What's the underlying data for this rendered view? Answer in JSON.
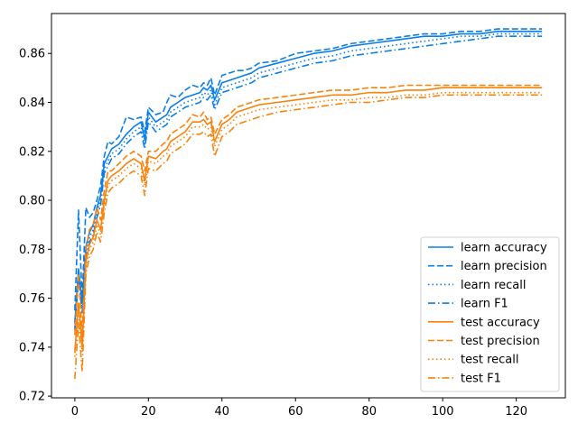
{
  "chart_data": {
    "type": "line",
    "title": "",
    "xlabel": "",
    "ylabel": "",
    "xlim": [
      -6.35,
      133.35
    ],
    "ylim": [
      0.7193,
      0.8763
    ],
    "xticks": [
      0,
      20,
      40,
      60,
      80,
      100,
      120
    ],
    "yticks": [
      0.72,
      0.74,
      0.76,
      0.78,
      0.8,
      0.82,
      0.84,
      0.86
    ],
    "ytick_labels": [
      "0.72",
      "0.74",
      "0.76",
      "0.78",
      "0.80",
      "0.82",
      "0.84",
      "0.86"
    ],
    "grid": false,
    "legend_position": "lower-right",
    "x": [
      0,
      1,
      2,
      3,
      4,
      5,
      6,
      7,
      8,
      9,
      10,
      12,
      14,
      16,
      18,
      19,
      20,
      22,
      24,
      25,
      26,
      28,
      30,
      32,
      34,
      35,
      36,
      37,
      38,
      40,
      42,
      44,
      46,
      48,
      50,
      55,
      60,
      65,
      70,
      75,
      80,
      85,
      90,
      95,
      100,
      105,
      110,
      115,
      120,
      125,
      127
    ],
    "series": [
      {
        "name": "learn accuracy",
        "color": "#1f77b4",
        "display_color": "#0a7ee8",
        "dash": "solid",
        "values": [
          0.75,
          0.772,
          0.758,
          0.781,
          0.787,
          0.79,
          0.797,
          0.802,
          0.815,
          0.818,
          0.821,
          0.823,
          0.827,
          0.83,
          0.832,
          0.825,
          0.836,
          0.832,
          0.834,
          0.835,
          0.838,
          0.84,
          0.842,
          0.843,
          0.844,
          0.846,
          0.845,
          0.847,
          0.841,
          0.848,
          0.849,
          0.85,
          0.851,
          0.852,
          0.854,
          0.856,
          0.858,
          0.86,
          0.861,
          0.863,
          0.864,
          0.865,
          0.866,
          0.867,
          0.867,
          0.868,
          0.868,
          0.869,
          0.869,
          0.869,
          0.869
        ]
      },
      {
        "name": "learn precision",
        "color": "#1f77b4",
        "display_color": "#0a7ee8",
        "dash": "dashed",
        "values": [
          0.755,
          0.796,
          0.76,
          0.797,
          0.793,
          0.795,
          0.8,
          0.806,
          0.818,
          0.824,
          0.823,
          0.826,
          0.834,
          0.833,
          0.834,
          0.828,
          0.838,
          0.835,
          0.836,
          0.84,
          0.843,
          0.842,
          0.845,
          0.847,
          0.846,
          0.848,
          0.847,
          0.85,
          0.843,
          0.851,
          0.852,
          0.853,
          0.853,
          0.854,
          0.856,
          0.857,
          0.86,
          0.861,
          0.862,
          0.864,
          0.865,
          0.866,
          0.867,
          0.868,
          0.868,
          0.869,
          0.869,
          0.87,
          0.87,
          0.87,
          0.87
        ]
      },
      {
        "name": "learn recall",
        "color": "#1f77b4",
        "display_color": "#0a7ee8",
        "dash": "dotted",
        "values": [
          0.748,
          0.77,
          0.756,
          0.779,
          0.785,
          0.788,
          0.795,
          0.8,
          0.813,
          0.816,
          0.819,
          0.821,
          0.825,
          0.828,
          0.83,
          0.823,
          0.834,
          0.83,
          0.832,
          0.833,
          0.836,
          0.838,
          0.84,
          0.841,
          0.842,
          0.844,
          0.843,
          0.845,
          0.839,
          0.846,
          0.847,
          0.848,
          0.849,
          0.85,
          0.852,
          0.854,
          0.856,
          0.858,
          0.859,
          0.861,
          0.862,
          0.863,
          0.864,
          0.865,
          0.866,
          0.867,
          0.867,
          0.868,
          0.868,
          0.868,
          0.868
        ]
      },
      {
        "name": "learn F1",
        "color": "#1f77b4",
        "display_color": "#0a7ee8",
        "dash": "dashdot",
        "values": [
          0.747,
          0.768,
          0.754,
          0.777,
          0.783,
          0.786,
          0.793,
          0.798,
          0.811,
          0.814,
          0.817,
          0.819,
          0.823,
          0.826,
          0.828,
          0.821,
          0.832,
          0.828,
          0.83,
          0.831,
          0.834,
          0.836,
          0.838,
          0.839,
          0.84,
          0.842,
          0.841,
          0.843,
          0.837,
          0.844,
          0.845,
          0.846,
          0.847,
          0.848,
          0.85,
          0.852,
          0.854,
          0.856,
          0.857,
          0.859,
          0.86,
          0.861,
          0.862,
          0.863,
          0.864,
          0.865,
          0.866,
          0.867,
          0.867,
          0.867,
          0.867
        ]
      },
      {
        "name": "test accuracy",
        "color": "#ff7f0e",
        "display_color": "#f8820a",
        "dash": "solid",
        "values": [
          0.738,
          0.758,
          0.74,
          0.775,
          0.782,
          0.785,
          0.792,
          0.788,
          0.8,
          0.808,
          0.81,
          0.812,
          0.815,
          0.817,
          0.815,
          0.808,
          0.818,
          0.817,
          0.82,
          0.821,
          0.824,
          0.826,
          0.828,
          0.832,
          0.832,
          0.833,
          0.831,
          0.832,
          0.824,
          0.831,
          0.833,
          0.836,
          0.837,
          0.838,
          0.839,
          0.84,
          0.841,
          0.842,
          0.843,
          0.843,
          0.844,
          0.844,
          0.845,
          0.845,
          0.846,
          0.846,
          0.846,
          0.846,
          0.846,
          0.846,
          0.846
        ]
      },
      {
        "name": "test precision",
        "color": "#ff7f0e",
        "display_color": "#f8820a",
        "dash": "dashed",
        "values": [
          0.745,
          0.77,
          0.745,
          0.78,
          0.788,
          0.79,
          0.797,
          0.792,
          0.804,
          0.812,
          0.812,
          0.815,
          0.818,
          0.82,
          0.818,
          0.812,
          0.82,
          0.82,
          0.823,
          0.824,
          0.827,
          0.829,
          0.831,
          0.835,
          0.834,
          0.836,
          0.833,
          0.834,
          0.827,
          0.833,
          0.835,
          0.838,
          0.839,
          0.84,
          0.841,
          0.842,
          0.843,
          0.844,
          0.845,
          0.845,
          0.846,
          0.846,
          0.847,
          0.847,
          0.847,
          0.847,
          0.847,
          0.847,
          0.847,
          0.847,
          0.847
        ]
      },
      {
        "name": "test recall",
        "color": "#ff7f0e",
        "display_color": "#f8820a",
        "dash": "dotted",
        "values": [
          0.736,
          0.756,
          0.738,
          0.773,
          0.78,
          0.783,
          0.79,
          0.786,
          0.798,
          0.806,
          0.808,
          0.81,
          0.813,
          0.815,
          0.813,
          0.806,
          0.816,
          0.815,
          0.818,
          0.819,
          0.822,
          0.824,
          0.826,
          0.83,
          0.83,
          0.831,
          0.829,
          0.83,
          0.822,
          0.829,
          0.831,
          0.834,
          0.835,
          0.836,
          0.837,
          0.838,
          0.839,
          0.84,
          0.841,
          0.841,
          0.842,
          0.842,
          0.843,
          0.843,
          0.844,
          0.844,
          0.844,
          0.844,
          0.844,
          0.844,
          0.844
        ]
      },
      {
        "name": "test F1",
        "color": "#ff7f0e",
        "display_color": "#f8820a",
        "dash": "dashdot",
        "values": [
          0.727,
          0.75,
          0.73,
          0.77,
          0.777,
          0.78,
          0.787,
          0.783,
          0.795,
          0.803,
          0.805,
          0.807,
          0.81,
          0.812,
          0.81,
          0.802,
          0.813,
          0.812,
          0.815,
          0.816,
          0.819,
          0.821,
          0.823,
          0.827,
          0.827,
          0.828,
          0.826,
          0.827,
          0.818,
          0.826,
          0.828,
          0.831,
          0.832,
          0.833,
          0.834,
          0.836,
          0.837,
          0.838,
          0.839,
          0.84,
          0.84,
          0.841,
          0.842,
          0.842,
          0.843,
          0.843,
          0.843,
          0.843,
          0.843,
          0.843,
          0.843
        ]
      }
    ]
  }
}
